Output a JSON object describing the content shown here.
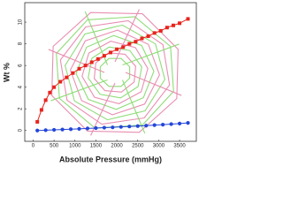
{
  "chart_data": {
    "type": "line",
    "x_label": "Absolute Pressure (mmHg)",
    "y_label": "Wt %",
    "xlim": [
      -200,
      3900
    ],
    "ylim": [
      -1,
      11.8
    ],
    "xticks": [
      0,
      500,
      1000,
      1500,
      2000,
      2500,
      3000,
      3500
    ],
    "yticks": [
      0,
      2,
      4,
      6,
      8,
      10
    ],
    "series": [
      {
        "color": "#e8231c",
        "marker": "square",
        "x": [
          100,
          200,
          300,
          400,
          500,
          650,
          800,
          950,
          1100,
          1250,
          1400,
          1550,
          1700,
          1850,
          2000,
          2150,
          2300,
          2450,
          2600,
          2750,
          2900,
          3050,
          3200,
          3350,
          3500,
          3700
        ],
        "values": [
          0.8,
          1.9,
          2.8,
          3.5,
          4.0,
          4.5,
          4.9,
          5.3,
          5.7,
          6.0,
          6.3,
          6.6,
          6.9,
          7.2,
          7.5,
          7.7,
          8.0,
          8.2,
          8.5,
          8.7,
          9.0,
          9.2,
          9.5,
          9.7,
          9.9,
          10.3
        ]
      },
      {
        "color": "#2346d8",
        "marker": "circle",
        "x": [
          100,
          300,
          500,
          700,
          900,
          1100,
          1300,
          1500,
          1700,
          1900,
          2100,
          2300,
          2500,
          2700,
          2900,
          3100,
          3300,
          3500,
          3700
        ],
        "values": [
          0.0,
          0.03,
          0.06,
          0.09,
          0.12,
          0.15,
          0.19,
          0.22,
          0.26,
          0.29,
          0.33,
          0.37,
          0.41,
          0.45,
          0.5,
          0.54,
          0.59,
          0.64,
          0.7
        ]
      }
    ]
  }
}
